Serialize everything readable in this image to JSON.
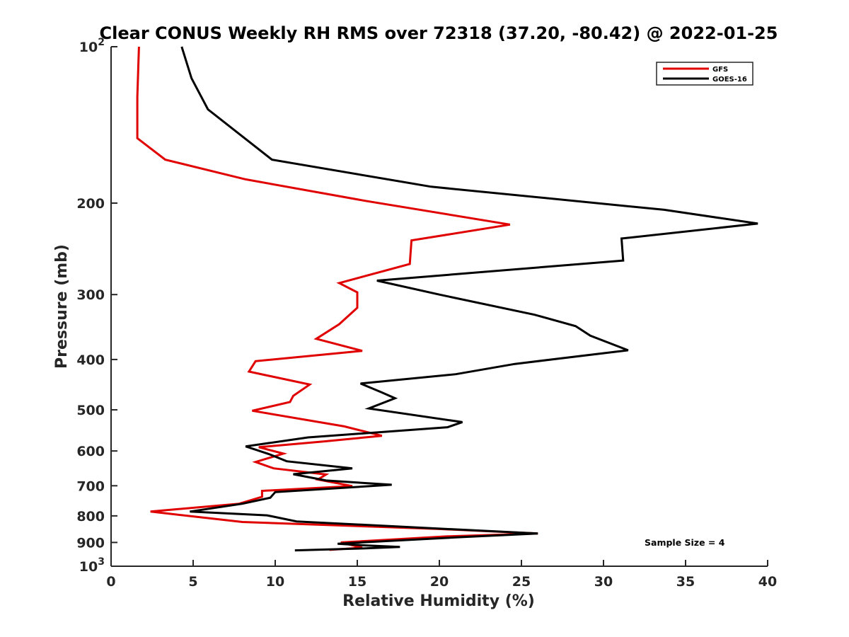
{
  "chart_data": {
    "type": "line",
    "title": "Clear CONUS Weekly RH RMS over 72318 (37.20, -80.42) @ 2022-01-25",
    "xlabel": "Relative Humidity (%)",
    "ylabel": "Pressure (mb)",
    "xlim": [
      0,
      40
    ],
    "ylim": [
      100,
      1000
    ],
    "yscale": "log",
    "y_reversed": true,
    "x_ticks": [
      0,
      5,
      10,
      15,
      20,
      25,
      30,
      35,
      40
    ],
    "x_tick_labels": [
      "0",
      "5",
      "10",
      "15",
      "20",
      "25",
      "30",
      "35",
      "40"
    ],
    "y_ticks": [
      100,
      200,
      300,
      400,
      500,
      600,
      700,
      800,
      900,
      1000
    ],
    "y_tick_labels": [
      "10^2",
      "200",
      "300",
      "400",
      "500",
      "600",
      "700",
      "800",
      "900",
      "10^3"
    ],
    "grid": false,
    "legend_position": "top-right",
    "annotation": "Sample Size = 4",
    "series": [
      {
        "name": "GFS",
        "color": "#e00000",
        "points": [
          [
            1.7,
            100
          ],
          [
            1.6,
            125
          ],
          [
            1.6,
            150
          ],
          [
            3.3,
            165
          ],
          [
            8.2,
            180
          ],
          [
            15.5,
            198
          ],
          [
            24.3,
            220
          ],
          [
            18.3,
            236
          ],
          [
            18.2,
            262
          ],
          [
            13.9,
            285
          ],
          [
            15.0,
            297
          ],
          [
            15.0,
            318
          ],
          [
            13.9,
            342
          ],
          [
            12.5,
            365
          ],
          [
            15.3,
            385
          ],
          [
            8.8,
            403
          ],
          [
            8.4,
            422
          ],
          [
            12.1,
            447
          ],
          [
            11.1,
            470
          ],
          [
            10.9,
            483
          ],
          [
            8.6,
            502
          ],
          [
            14.2,
            538
          ],
          [
            16.5,
            561
          ],
          [
            13.0,
            575
          ],
          [
            9.0,
            590
          ],
          [
            10.5,
            607
          ],
          [
            8.8,
            630
          ],
          [
            9.9,
            648
          ],
          [
            13.1,
            666
          ],
          [
            12.6,
            681
          ],
          [
            14.7,
            701
          ],
          [
            9.2,
            716
          ],
          [
            9.2,
            735
          ],
          [
            7.8,
            758
          ],
          [
            2.4,
            785
          ],
          [
            8.0,
            822
          ],
          [
            20.0,
            848
          ],
          [
            26.0,
            865
          ],
          [
            20.5,
            876
          ],
          [
            14.0,
            900
          ],
          [
            15.3,
            921
          ],
          [
            13.3,
            930
          ]
        ]
      },
      {
        "name": "GOES-16",
        "color": "#000000",
        "points": [
          [
            4.3,
            100
          ],
          [
            4.9,
            115
          ],
          [
            5.9,
            132
          ],
          [
            9.8,
            165
          ],
          [
            19.5,
            186
          ],
          [
            33.7,
            206
          ],
          [
            39.4,
            219
          ],
          [
            31.1,
            234
          ],
          [
            31.2,
            258
          ],
          [
            16.2,
            282
          ],
          [
            20.0,
            300
          ],
          [
            25.8,
            328
          ],
          [
            28.3,
            345
          ],
          [
            29.2,
            360
          ],
          [
            31.5,
            384
          ],
          [
            24.6,
            408
          ],
          [
            21.0,
            427
          ],
          [
            15.2,
            445
          ],
          [
            16.5,
            463
          ],
          [
            17.3,
            475
          ],
          [
            15.7,
            497
          ],
          [
            21.4,
            528
          ],
          [
            20.5,
            540
          ],
          [
            12.0,
            565
          ],
          [
            8.2,
            588
          ],
          [
            9.6,
            608
          ],
          [
            10.7,
            628
          ],
          [
            14.7,
            648
          ],
          [
            11.1,
            665
          ],
          [
            13.1,
            684
          ],
          [
            17.1,
            697
          ],
          [
            10.0,
            720
          ],
          [
            9.7,
            738
          ],
          [
            8.0,
            758
          ],
          [
            4.8,
            785
          ],
          [
            9.5,
            798
          ],
          [
            11.3,
            820
          ],
          [
            26.0,
            865
          ],
          [
            21.0,
            880
          ],
          [
            13.8,
            905
          ],
          [
            15.5,
            912
          ],
          [
            17.6,
            918
          ],
          [
            15.5,
            924
          ],
          [
            11.2,
            932
          ]
        ]
      }
    ]
  }
}
